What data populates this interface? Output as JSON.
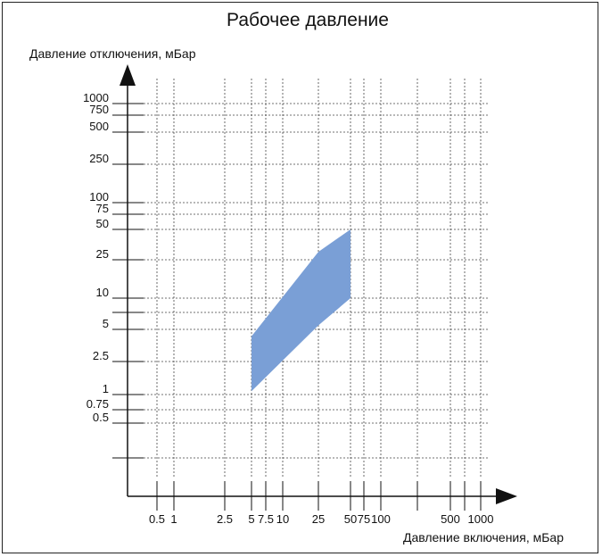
{
  "chart_data": {
    "type": "area",
    "title": "Рабочее давление",
    "xlabel": "Давление включения, мБар",
    "ylabel": "Давление отключения, мБар",
    "x_ticks": [
      {
        "value": 0.5,
        "label": "0.5"
      },
      {
        "value": 1,
        "label": "1"
      },
      {
        "value": 2.5,
        "label": "2.5"
      },
      {
        "value": 5,
        "label": "5"
      },
      {
        "value": 7.5,
        "label": "7.5"
      },
      {
        "value": 10,
        "label": "10"
      },
      {
        "value": 25,
        "label": "25"
      },
      {
        "value": 50,
        "label": "50"
      },
      {
        "value": 75,
        "label": "75"
      },
      {
        "value": 100,
        "label": "100"
      },
      {
        "value": 250,
        "label": ""
      },
      {
        "value": 500,
        "label": "500"
      },
      {
        "value": 750,
        "label": ""
      },
      {
        "value": 1000,
        "label": "1000"
      }
    ],
    "y_ticks": [
      {
        "value": 0.25,
        "label": ""
      },
      {
        "value": 0.5,
        "label": "0.5"
      },
      {
        "value": 0.75,
        "label": "0.75"
      },
      {
        "value": 1,
        "label": "1"
      },
      {
        "value": 2.5,
        "label": "2.5"
      },
      {
        "value": 5,
        "label": "5"
      },
      {
        "value": 7.5,
        "label": ""
      },
      {
        "value": 10,
        "label": "10"
      },
      {
        "value": 25,
        "label": "25"
      },
      {
        "value": 50,
        "label": "50"
      },
      {
        "value": 75,
        "label": "75"
      },
      {
        "value": 100,
        "label": "100"
      },
      {
        "value": 250,
        "label": "250"
      },
      {
        "value": 500,
        "label": "500"
      },
      {
        "value": 750,
        "label": "750"
      },
      {
        "value": 1000,
        "label": "1000"
      }
    ],
    "x_scale": "log-like",
    "y_scale": "log-like",
    "grid": true,
    "series": [
      {
        "color": "#7a9fd6",
        "polygon": [
          {
            "x": 5,
            "y": 1.1
          },
          {
            "x": 5,
            "y": 4.3
          },
          {
            "x": 25,
            "y": 30
          },
          {
            "x": 50,
            "y": 50
          },
          {
            "x": 50,
            "y": 10
          },
          {
            "x": 25,
            "y": 5.5
          }
        ]
      }
    ]
  }
}
